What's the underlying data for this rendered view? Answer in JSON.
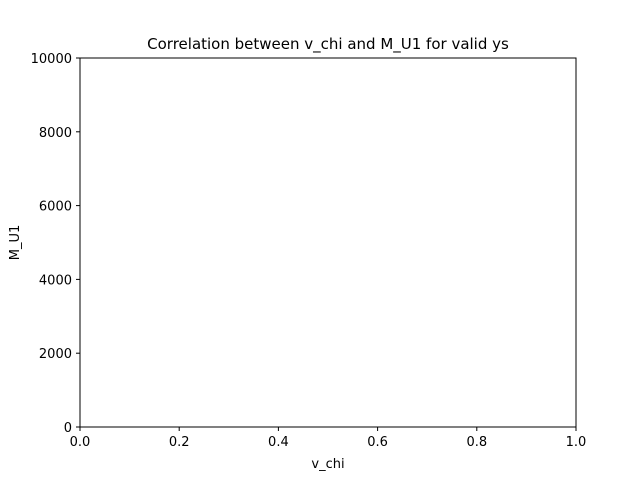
{
  "chart_data": {
    "type": "scatter",
    "title": "Correlation between v_chi and M_U1 for valid ys",
    "xlabel": "v_chi",
    "ylabel": "M_U1",
    "xlim": [
      0.0,
      1.0
    ],
    "ylim": [
      0,
      10000
    ],
    "x_ticks": [
      0.0,
      0.2,
      0.4,
      0.6,
      0.8,
      1.0
    ],
    "x_tick_labels": [
      "0.0",
      "0.2",
      "0.4",
      "0.6",
      "0.8",
      "1.0"
    ],
    "y_ticks": [
      0,
      2000,
      4000,
      6000,
      8000,
      10000
    ],
    "y_tick_labels": [
      "0",
      "2000",
      "4000",
      "6000",
      "8000",
      "10000"
    ],
    "series": [
      {
        "name": "valid ys",
        "x": [],
        "y": []
      }
    ],
    "grid": false,
    "legend": "none"
  }
}
